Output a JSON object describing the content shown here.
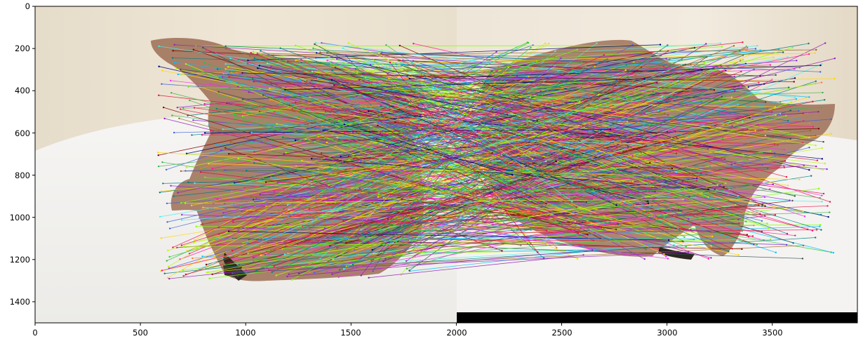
{
  "figure": {
    "description_kind": "keypoint-match-visualization",
    "x_ticks": [
      "0",
      "500",
      "1000",
      "1500",
      "2000",
      "2500",
      "3000",
      "3500"
    ],
    "y_ticks": [
      "0",
      "200",
      "400",
      "600",
      "800",
      "1000",
      "1200",
      "1400"
    ],
    "x_range": [
      0,
      3904
    ],
    "y_range": [
      0,
      1500
    ],
    "colors": {
      "wall": "#e8dcc8",
      "table": "#f3f1ee",
      "figurine": "#9a6a52",
      "padding": "#000000",
      "axes": "#000000"
    }
  }
}
